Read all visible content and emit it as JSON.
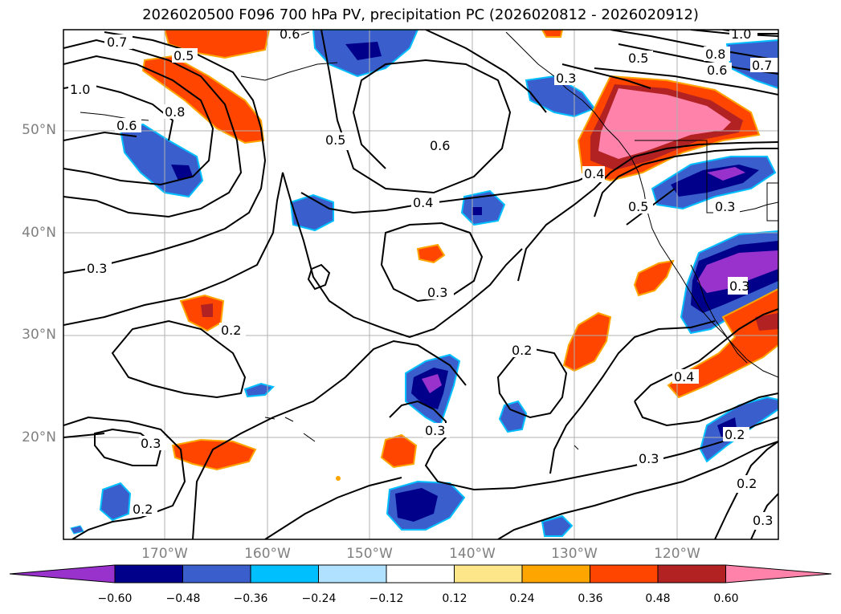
{
  "title": "2026020500 F096 700 hPa PV, precipitation PC (2026020812 - 2026020912)",
  "lat_labels": [
    "50°N",
    "40°N",
    "30°N",
    "20°N"
  ],
  "lon_labels": [
    "170°W",
    "160°W",
    "150°W",
    "140°W",
    "130°W",
    "120°W"
  ],
  "contour_labels": [
    "0.7",
    "0.5",
    "1.0",
    "0.8",
    "0.6",
    "0.6",
    "0.5",
    "0.6",
    "0.4",
    "0.3",
    "0.3",
    "0.2",
    "0.2",
    "0.3",
    "0.3",
    "0.2",
    "0.4",
    "0.3",
    "0.2",
    "0.2",
    "0.3",
    "1.0",
    "0.8",
    "0.7",
    "0.6",
    "0.5",
    "0.5",
    "0.4",
    "0.3",
    "0.3",
    "0.3"
  ],
  "colorbar": {
    "tick_labels": [
      "−0.60",
      "−0.48",
      "−0.36",
      "−0.24",
      "−0.12",
      "0.12",
      "0.24",
      "0.36",
      "0.48",
      "0.60"
    ],
    "colors": [
      "#9932cc",
      "#00008b",
      "#3a5fcd",
      "#00bfff",
      "#b0e2ff",
      "#ffffff",
      "#fde68a",
      "#ffa500",
      "#ff4500",
      "#b22222",
      "#ff82ab"
    ]
  },
  "legend_colors": {
    "purple": "#9932cc",
    "navy": "#00008b",
    "blue": "#3a5fcd",
    "cyan": "#00bfff",
    "light": "#b0e2ff",
    "yellow": "#fde68a",
    "orange": "#ffa500",
    "redorange": "#ff4500",
    "darkred": "#b22222",
    "pink": "#ff82ab"
  }
}
